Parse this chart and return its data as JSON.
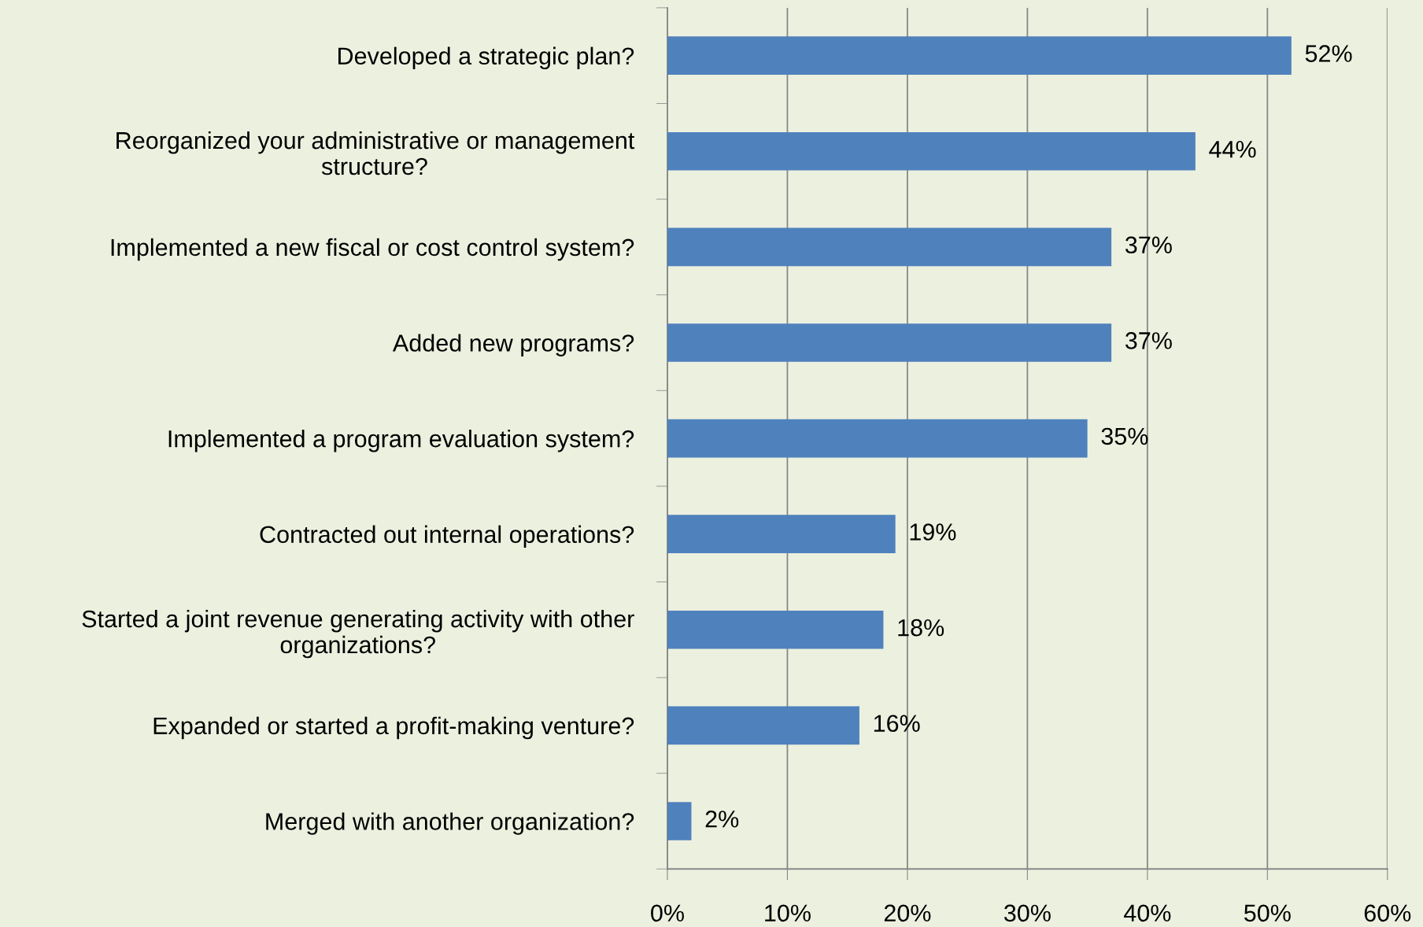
{
  "chart_data": {
    "type": "bar",
    "orientation": "horizontal",
    "categories": [
      "Developed a strategic plan?",
      "Reorganized your administrative or management\nstructure?",
      "Implemented a new fiscal or cost control system?",
      "Added new programs?",
      "Implemented a program evaluation system?",
      "Contracted out internal operations?",
      "Started a joint revenue generating activity with other\norganizations?",
      "Expanded or started a profit-making venture?",
      "Merged with another organization?"
    ],
    "values": [
      52,
      44,
      37,
      37,
      35,
      19,
      18,
      16,
      2
    ],
    "color": "#4f81bd",
    "xlim": [
      0,
      60
    ],
    "xticks": [
      {
        "value": 0,
        "label": "0%"
      },
      {
        "value": 10,
        "label": "10%"
      },
      {
        "value": 20,
        "label": "20%"
      },
      {
        "value": 30,
        "label": "30%"
      },
      {
        "value": 40,
        "label": "40%"
      },
      {
        "value": 50,
        "label": "50%"
      },
      {
        "value": 60,
        "label": "60%"
      }
    ],
    "value_labels": [
      "52%",
      "44%",
      "37%",
      "37%",
      "35%",
      "19%",
      "18%",
      "16%",
      "2%"
    ],
    "grid": "x",
    "legend": false
  }
}
